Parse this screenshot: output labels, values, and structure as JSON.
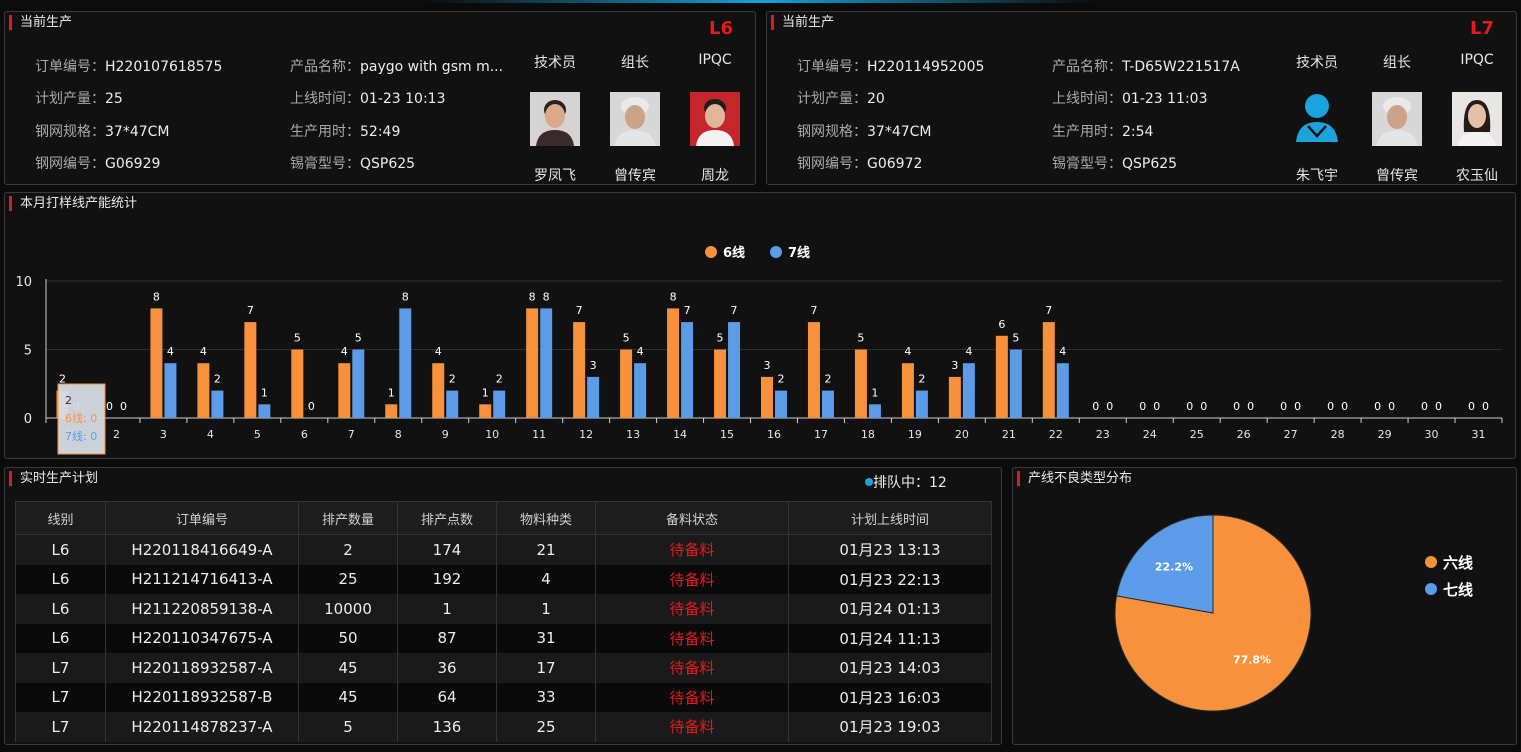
{
  "colors": {
    "line6": "#f7913b",
    "line7": "#5b9be8",
    "title_bar": "#d42020",
    "status": "#e51b1b",
    "avatar_accent": "#1aa3dc"
  },
  "current_l6": {
    "title": "当前生产",
    "line": "L6",
    "fields": [
      {
        "k": "订单编号：",
        "v": "H220107618575"
      },
      {
        "k": "计划产量：",
        "v": "25"
      },
      {
        "k": "钢网规格：",
        "v": "37*47CM"
      },
      {
        "k": "钢网编号：",
        "v": "G06929"
      },
      {
        "k": "产品名称：",
        "v": "paygo with gsm m..."
      },
      {
        "k": "上线时间：",
        "v": "01-23 10:13"
      },
      {
        "k": "生产用时：",
        "v": "52:49"
      },
      {
        "k": "锡膏型号：",
        "v": "QSP625"
      }
    ],
    "roles": [
      "技术员",
      "组长",
      "IPQC"
    ],
    "people": [
      "罗凤飞",
      "曾传宾",
      "周龙"
    ]
  },
  "current_l7": {
    "title": "当前生产",
    "line": "L7",
    "fields": [
      {
        "k": "订单编号：",
        "v": "H220114952005"
      },
      {
        "k": "计划产量：",
        "v": "20"
      },
      {
        "k": "钢网规格：",
        "v": "37*47CM"
      },
      {
        "k": "钢网编号：",
        "v": "G06972"
      },
      {
        "k": "产品名称：",
        "v": "T-D65W221517A"
      },
      {
        "k": "上线时间：",
        "v": "01-23 11:03"
      },
      {
        "k": "生产用时：",
        "v": "2:54"
      },
      {
        "k": "锡膏型号：",
        "v": "QSP625"
      }
    ],
    "roles": [
      "技术员",
      "组长",
      "IPQC"
    ],
    "people": [
      "朱飞宇",
      "曾传宾",
      "农玉仙"
    ]
  },
  "capacity": {
    "title": "本月打样线产能统计"
  },
  "plan": {
    "title": "实时生产计划",
    "queue_label": "排队中：12",
    "headers": [
      "线别",
      "订单编号",
      "排产数量",
      "排产点数",
      "物料种类",
      "备料状态",
      "计划上线时间"
    ],
    "rows": [
      [
        "L6",
        "H220118416649-A",
        "2",
        "174",
        "21",
        "待备料",
        "01月23 13:13"
      ],
      [
        "L6",
        "H211214716413-A",
        "25",
        "192",
        "4",
        "待备料",
        "01月23 22:13"
      ],
      [
        "L6",
        "H211220859138-A",
        "10000",
        "1",
        "1",
        "待备料",
        "01月24 01:13"
      ],
      [
        "L6",
        "H220110347675-A",
        "50",
        "87",
        "31",
        "待备料",
        "01月24 11:13"
      ],
      [
        "L7",
        "H220118932587-A",
        "45",
        "36",
        "17",
        "待备料",
        "01月23 14:03"
      ],
      [
        "L7",
        "H220118932587-B",
        "45",
        "64",
        "33",
        "待备料",
        "01月23 16:03"
      ],
      [
        "L7",
        "H220114878237-A",
        "5",
        "136",
        "25",
        "待备料",
        "01月23 19:03"
      ]
    ]
  },
  "defects": {
    "title": "产线不良类型分布"
  },
  "chart_data": [
    {
      "type": "bar",
      "title": "本月打样线产能统计",
      "categories": [
        "1",
        "2",
        "3",
        "4",
        "5",
        "6",
        "7",
        "8",
        "9",
        "10",
        "11",
        "12",
        "13",
        "14",
        "15",
        "16",
        "17",
        "18",
        "19",
        "20",
        "21",
        "22",
        "23",
        "24",
        "25",
        "26",
        "27",
        "28",
        "29",
        "30",
        "31"
      ],
      "series": [
        {
          "name": "6线",
          "values": [
            2,
            0,
            8,
            4,
            7,
            5,
            4,
            1,
            4,
            1,
            8,
            7,
            5,
            8,
            5,
            3,
            7,
            5,
            4,
            3,
            6,
            7,
            0,
            0,
            0,
            0,
            0,
            0,
            0,
            0,
            0
          ]
        },
        {
          "name": "7线",
          "values": [
            0,
            0,
            4,
            2,
            1,
            0,
            5,
            8,
            2,
            2,
            8,
            3,
            4,
            7,
            7,
            2,
            2,
            1,
            2,
            4,
            5,
            4,
            0,
            0,
            0,
            0,
            0,
            0,
            0,
            0,
            0
          ]
        }
      ],
      "ylim": [
        0,
        10
      ],
      "yticks": [
        "0",
        "5",
        "10"
      ],
      "legend_position": "top-center",
      "grid": true,
      "tooltip": {
        "title": "2",
        "rows": [
          "6线: 0",
          "7线: 0"
        ]
      }
    },
    {
      "type": "pie",
      "title": "产线不良类型分布",
      "slices": [
        {
          "name": "六线",
          "value": 77.8,
          "label": "77.8%"
        },
        {
          "name": "七线",
          "value": 22.2,
          "label": "22.2%"
        }
      ],
      "legend_position": "right"
    }
  ]
}
